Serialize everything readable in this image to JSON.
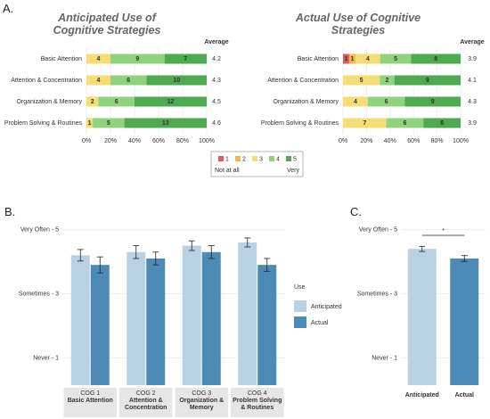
{
  "panels": [
    "A.",
    "B.",
    "C."
  ],
  "chart_data": [
    {
      "type": "stacked-barh",
      "title": "Anticipated Use of Cognitive Strategies",
      "average_label": "Average",
      "categories": [
        "Basic Attention",
        "Attention & Concentration",
        "Organization & Memory",
        "Problem Solving & Routines"
      ],
      "averages": [
        4.2,
        4.3,
        4.5,
        4.6
      ],
      "series": [
        {
          "name": "1",
          "color": "#e15a5a",
          "values": [
            null,
            null,
            null,
            null
          ]
        },
        {
          "name": "2",
          "color": "#f3b946",
          "values": [
            null,
            null,
            null,
            null
          ]
        },
        {
          "name": "3",
          "color": "#f6dc74",
          "values": [
            4,
            4,
            2,
            1
          ]
        },
        {
          "name": "4",
          "color": "#8fd47c",
          "values": [
            9,
            6,
            6,
            5
          ]
        },
        {
          "name": "5",
          "color": "#4daa4f",
          "values": [
            7,
            10,
            12,
            13
          ]
        }
      ],
      "legend_low": "Not at all",
      "legend_high": "Very",
      "xlim": [
        0,
        100
      ],
      "xticks": [
        {
          "value": 0,
          "label": "0%"
        },
        {
          "value": 20,
          "label": "20%"
        },
        {
          "value": 40,
          "label": "40%"
        },
        {
          "value": 60,
          "label": "60%"
        },
        {
          "value": 80,
          "label": "80%"
        },
        {
          "value": 100,
          "label": "100%"
        }
      ],
      "grid": true
    },
    {
      "type": "stacked-barh",
      "title": "Actual Use of Cognitive Strategies",
      "average_label": "Average",
      "categories": [
        "Basic Attention",
        "Attention & Concentration",
        "Organization & Memory",
        "Problem Solving & Routines"
      ],
      "averages": [
        3.9,
        4.1,
        4.3,
        3.9
      ],
      "series": [
        {
          "color": "#e15a5a",
          "values": [
            1,
            null,
            null,
            null
          ]
        },
        {
          "color": "#f3b946",
          "values": [
            1,
            null,
            null,
            null
          ]
        },
        {
          "color": "#f6dc74",
          "values": [
            4,
            5,
            4,
            7
          ]
        },
        {
          "color": "#8fd47c",
          "values": [
            5,
            2,
            6,
            6
          ]
        },
        {
          "color": "#4daa4f",
          "values": [
            8,
            9,
            9,
            6
          ]
        }
      ],
      "xlim": [
        0,
        100
      ],
      "xticks": [
        {
          "value": 0,
          "label": "0%"
        },
        {
          "value": 20,
          "label": "20%"
        },
        {
          "value": 40,
          "label": "40%"
        },
        {
          "value": 60,
          "label": "60%"
        },
        {
          "value": 80,
          "label": "80%"
        },
        {
          "value": 100,
          "label": "100%"
        }
      ],
      "grid": true
    },
    {
      "type": "grouped-bar",
      "categories": [
        "COG 1",
        "COG 2",
        "COG 3",
        "COG 4"
      ],
      "subcategories": [
        "Basic Attention",
        "Attention & Concentration",
        "Organization & Memory",
        "Problem Solving & Routines"
      ],
      "legend_title": "Use",
      "series": [
        {
          "name": "Anticipated",
          "color": "#b8d2e3",
          "values": [
            4.2,
            4.3,
            4.5,
            4.6
          ],
          "errors": [
            0.18,
            0.2,
            0.15,
            0.14
          ]
        },
        {
          "name": "Actual",
          "color": "#4b8bb6",
          "values": [
            3.9,
            4.1,
            4.3,
            3.9
          ],
          "errors": [
            0.25,
            0.2,
            0.2,
            0.2
          ]
        }
      ],
      "ylim": [
        0.15,
        5.35
      ],
      "yticks": [
        {
          "value": 1,
          "label": "Never - 1"
        },
        {
          "value": 3,
          "label": "Sometimes - 3"
        },
        {
          "value": 5,
          "label": "Very Often - 5"
        }
      ],
      "grid": true
    },
    {
      "type": "bar",
      "categories": [
        "Anticipated",
        "Actual"
      ],
      "values": [
        4.4,
        4.1
      ],
      "errors": [
        0.08,
        0.09
      ],
      "colors": [
        "#b8d2e3",
        "#4b8bb6"
      ],
      "annotation": "*",
      "ylim": [
        0.15,
        5.35
      ],
      "yticks": [
        {
          "value": 1,
          "label": "Never - 1"
        },
        {
          "value": 3,
          "label": "Sometimes - 3"
        },
        {
          "value": 5,
          "label": "Very Often - 5"
        }
      ],
      "grid": true
    }
  ]
}
